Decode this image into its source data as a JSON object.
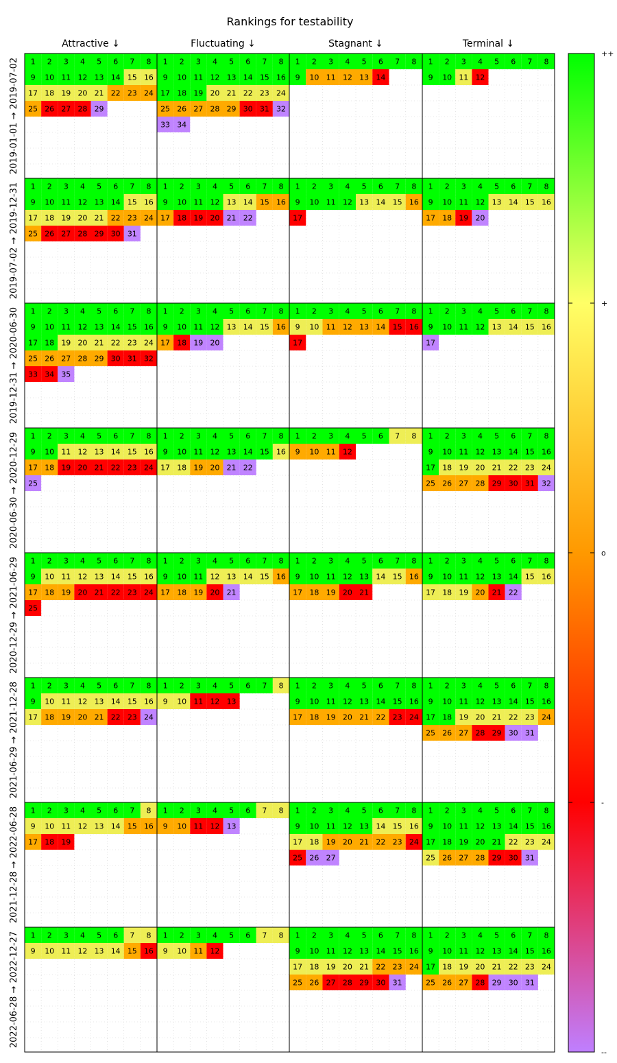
{
  "chart_data": {
    "type": "heatmap",
    "title": "Rankings for testability",
    "columns": [
      "Attractive ↓",
      "Fluctuating ↓",
      "Stagnant ↓",
      "Terminal ↓"
    ],
    "rows": [
      "2019-01-01 → 2019-07-02",
      "2019-07-02 → 2019-12-31",
      "2019-12-31 → 2020-06-30",
      "2020-06-30 → 2020-12-29",
      "2020-12-29 → 2021-06-29",
      "2021-06-29 → 2021-12-28",
      "2021-12-28 → 2022-06-28",
      "2022-06-28 → 2022-12-27"
    ],
    "colorbar": {
      "labels": [
        "++",
        "+",
        "o",
        "-",
        "--"
      ],
      "stops": [
        {
          "pos": 0.0,
          "color": "#00ff00"
        },
        {
          "pos": 0.25,
          "color": "#ffff66"
        },
        {
          "pos": 0.5,
          "color": "#ff9900"
        },
        {
          "pos": 0.75,
          "color": "#ff0000"
        },
        {
          "pos": 1.0,
          "color": "#bf7fff"
        }
      ]
    },
    "legend_colors": {
      "G": "#00ff00",
      "Y": "#eeee55",
      "O": "#ffaa00",
      "R": "#ff0000",
      "P": "#c084ff"
    },
    "cells": [
      [
        "GGGGGGGGGGGGGGYYYYYYYOOOORRRP",
        "GGGGGGGGGGGGGGGGGGGYYYYYOOOOORRPPP",
        "GGGGGGGGGOOOOR",
        "GGGGGGGGGGYR"
      ],
      [
        "GGGGGGGGGGGGGGYYYYYYYOOOORRRRRP",
        "GGGGGGGGGGGGYYOOORRRPP",
        "GGGGGGGGGGGGYYYOR",
        "GGGGGGGGGGGGYYYYOORP"
      ],
      [
        "GGGGGGGGGGGGGGGGGGYYYYYYOOOOORRRRRP",
        "GGGGGGGGGGGGYYYOORPP",
        "GGGGGGGGYYOOOORRR",
        "GGGGGGGGGGGGYYYYP"
      ],
      [
        "GGGGGGGGGGYYYYYYOORRRRRRP",
        "GGGGGGGGGGGGGGGYYYOOPP",
        "GGGGGGYYOOOR",
        "GGGGGGGGGGGGGGGGGYYYYYYYOOOORRRP"
      ],
      [
        "GGGGGGGGGYYYYYYYOOORRRRRR",
        "GGGGGGGGGGGYYYYOOOORP",
        "GGGGGGGGGGGGGYYOOOORR",
        "GGGGGGGGGGGGGGYYYYYORP"
      ],
      [
        "GGGGGGGGGYYYYYYYYOOOORRP",
        "GGGGGGGYYYRRR",
        "GGGGGGGGGGGGGGGGOOOOOORR",
        "GGGGGGGGGGGGGGGGGGYYYYYOOOORRPP"
      ],
      [
        "GGGGGGGYYYYYYYOOORR",
        "GGGGGGYYOORRP",
        "GGGGGGGGGGGGGYYYYYOOOOORRPP",
        "GGGGGGGGGGGGGGGGGGGGGYYYYOOORRP"
      ],
      [
        "GGGGGGYYYYYYYYOR",
        "GGGGGGYYYYOR",
        "GGGGGGGGGGGGGGGGYYYYYOOOOORRRRP",
        "GGGGGGGGGGGGGGGGGYYYYYYYOOORPPP"
      ]
    ]
  }
}
